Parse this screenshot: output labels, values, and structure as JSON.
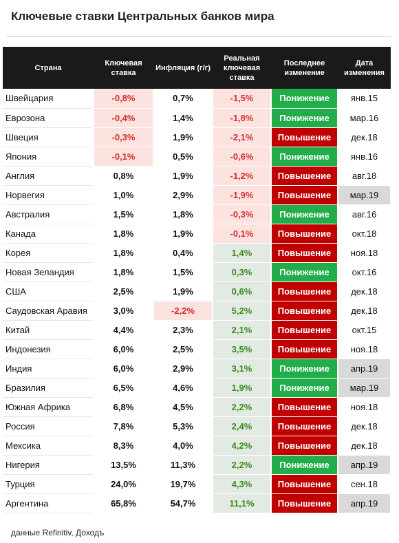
{
  "title": "Ключевые ставки Центральных банков мира",
  "headers": {
    "country": "Страна",
    "key_rate": "Ключевая ставка",
    "inflation": "Инфляция (г/г)",
    "real_rate": "Реальная ключевая ставка",
    "last_change": "Последнее изменение",
    "change_date": "Дата изменения"
  },
  "colors": {
    "header_bg": "#1a1a1a",
    "negative_text": "#d32f2f",
    "negative_bg": "#fde3df",
    "positive_text": "#3e8a1e",
    "positive_bg": "#e3eae3",
    "decrease_bg": "#22ad4b",
    "increase_bg": "#c00000",
    "highlight_date_bg": "#d9d9d9"
  },
  "rows": [
    {
      "country": "Швейцария",
      "key_rate": "-0,8%",
      "inflation": "0,7%",
      "real_rate": "-1,5%",
      "change": "Понижение",
      "date": "янв.15"
    },
    {
      "country": "Еврозона",
      "key_rate": "-0,4%",
      "inflation": "1,4%",
      "real_rate": "-1,8%",
      "change": "Понижение",
      "date": "мар.16"
    },
    {
      "country": "Швеция",
      "key_rate": "-0,3%",
      "inflation": "1,9%",
      "real_rate": "-2,1%",
      "change": "Повышение",
      "date": "дек.18"
    },
    {
      "country": "Япония",
      "key_rate": "-0,1%",
      "inflation": "0,5%",
      "real_rate": "-0,6%",
      "change": "Понижение",
      "date": "янв.16"
    },
    {
      "country": "Англия",
      "key_rate": "0,8%",
      "inflation": "1,9%",
      "real_rate": "-1,2%",
      "change": "Повышение",
      "date": "авг.18"
    },
    {
      "country": "Норвегия",
      "key_rate": "1,0%",
      "inflation": "2,9%",
      "real_rate": "-1,9%",
      "change": "Повышение",
      "date": "мар.19"
    },
    {
      "country": "Австралия",
      "key_rate": "1,5%",
      "inflation": "1,8%",
      "real_rate": "-0,3%",
      "change": "Понижение",
      "date": "авг.16"
    },
    {
      "country": "Канада",
      "key_rate": "1,8%",
      "inflation": "1,9%",
      "real_rate": "-0,1%",
      "change": "Повышение",
      "date": "окт.18"
    },
    {
      "country": "Корея",
      "key_rate": "1,8%",
      "inflation": "0,4%",
      "real_rate": "1,4%",
      "change": "Повышение",
      "date": "ноя.18"
    },
    {
      "country": "Новая Зеландия",
      "key_rate": "1,8%",
      "inflation": "1,5%",
      "real_rate": "0,3%",
      "change": "Понижение",
      "date": "окт.16"
    },
    {
      "country": "США",
      "key_rate": "2,5%",
      "inflation": "1,9%",
      "real_rate": "0,6%",
      "change": "Повышение",
      "date": "дек.18"
    },
    {
      "country": "Саудовская Аравия",
      "key_rate": "3,0%",
      "inflation": "-2,2%",
      "real_rate": "5,2%",
      "change": "Повышение",
      "date": "дек.18"
    },
    {
      "country": "Китай",
      "key_rate": "4,4%",
      "inflation": "2,3%",
      "real_rate": "2,1%",
      "change": "Повышение",
      "date": "окт.15"
    },
    {
      "country": "Индонезия",
      "key_rate": "6,0%",
      "inflation": "2,5%",
      "real_rate": "3,5%",
      "change": "Повышение",
      "date": "ноя.18"
    },
    {
      "country": "Индия",
      "key_rate": "6,0%",
      "inflation": "2,9%",
      "real_rate": "3,1%",
      "change": "Понижение",
      "date": "апр.19"
    },
    {
      "country": "Бразилия",
      "key_rate": "6,5%",
      "inflation": "4,6%",
      "real_rate": "1,9%",
      "change": "Понижение",
      "date": "мар.19"
    },
    {
      "country": "Южная Африка",
      "key_rate": "6,8%",
      "inflation": "4,5%",
      "real_rate": "2,2%",
      "change": "Повышение",
      "date": "ноя.18"
    },
    {
      "country": "Россия",
      "key_rate": "7,8%",
      "inflation": "5,3%",
      "real_rate": "2,4%",
      "change": "Повышение",
      "date": "дек.18"
    },
    {
      "country": "Мексика",
      "key_rate": "8,3%",
      "inflation": "4,0%",
      "real_rate": "4,2%",
      "change": "Повышение",
      "date": "дек.18"
    },
    {
      "country": "Нигерия",
      "key_rate": "13,5%",
      "inflation": "11,3%",
      "real_rate": "2,2%",
      "change": "Понижение",
      "date": "апр.19"
    },
    {
      "country": "Турция",
      "key_rate": "24,0%",
      "inflation": "19,7%",
      "real_rate": "4,3%",
      "change": "Повышение",
      "date": "сен.18"
    },
    {
      "country": "Аргентина",
      "key_rate": "65,8%",
      "inflation": "54,7%",
      "real_rate": "11,1%",
      "change": "Повышение",
      "date": "апр.19"
    }
  ],
  "source": "данные Refinitiv, Доходъ"
}
